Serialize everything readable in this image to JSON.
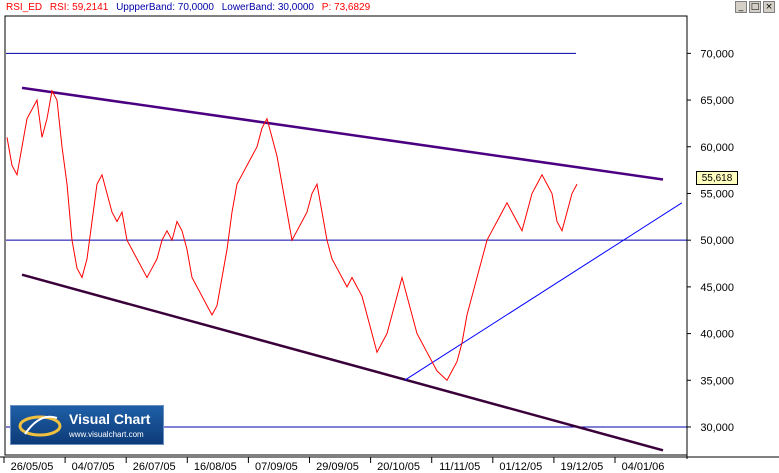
{
  "header": {
    "indicator_id": "RSI_ED",
    "rsi_label": "RSI: 59,2141",
    "upper_label": "UppperBand: 70,0000",
    "lower_label": "LowerBand: 30,0000",
    "p_label": "P: 73,6829"
  },
  "logo": {
    "name": "Visual Chart",
    "url": "www.visualchart.com"
  },
  "value_marker": "55,618",
  "colors": {
    "rsi": "#ff0000",
    "band": "#0000a8",
    "trend_upper": "#4b0082",
    "trend_lower": "#3a003a",
    "support": "#0000ff"
  },
  "chart_data": {
    "type": "line",
    "ylim": [
      27,
      74
    ],
    "y_ticks": [
      "30,000",
      "35,000",
      "40,000",
      "45,000",
      "50,000",
      "55,000",
      "60,000",
      "65,000",
      "70,000"
    ],
    "x_ticks": [
      "26/05/05",
      "04/07/05",
      "26/07/05",
      "16/08/05",
      "07/09/05",
      "29/09/05",
      "20/10/05",
      "11/11/05",
      "01/12/05",
      "19/12/05",
      "04/01/06"
    ],
    "horizontal_lines": [
      70,
      50,
      30
    ],
    "trend_lines": [
      {
        "name": "upper",
        "from": [
          "26/05/05",
          66.3
        ],
        "to": [
          "04/01/06",
          56.5
        ]
      },
      {
        "name": "lower",
        "from": [
          "26/05/05",
          46.3
        ],
        "to": [
          "04/01/06",
          27.5
        ]
      },
      {
        "name": "support",
        "from": [
          "20/10/05",
          35.0
        ],
        "to": [
          "19/12/05",
          54.0
        ]
      }
    ],
    "series": [
      {
        "values": [
          61,
          58,
          57,
          60,
          63,
          64,
          65,
          61,
          63,
          66,
          65,
          60,
          56,
          50,
          47,
          46,
          48,
          52,
          56,
          57,
          55,
          53,
          52,
          53,
          50,
          49,
          48,
          47,
          46,
          47,
          48,
          50,
          51,
          50,
          52,
          51,
          49,
          46,
          45,
          44,
          43,
          42,
          43,
          46,
          49,
          53,
          56,
          57,
          58,
          59,
          60,
          62,
          63,
          61,
          59,
          56,
          53,
          50,
          51,
          52,
          53,
          55,
          56,
          53,
          50,
          48,
          47,
          46,
          45,
          46,
          45,
          44,
          42,
          40,
          38,
          39,
          40,
          42,
          44,
          46,
          44,
          42,
          40,
          39,
          38,
          37,
          36,
          35.5,
          35,
          36,
          37,
          39,
          42,
          44,
          46,
          48,
          50,
          51,
          52,
          53,
          54,
          53,
          52,
          51,
          53,
          55,
          56,
          57,
          56,
          55,
          52,
          51,
          53,
          55,
          56
        ]
      }
    ]
  }
}
